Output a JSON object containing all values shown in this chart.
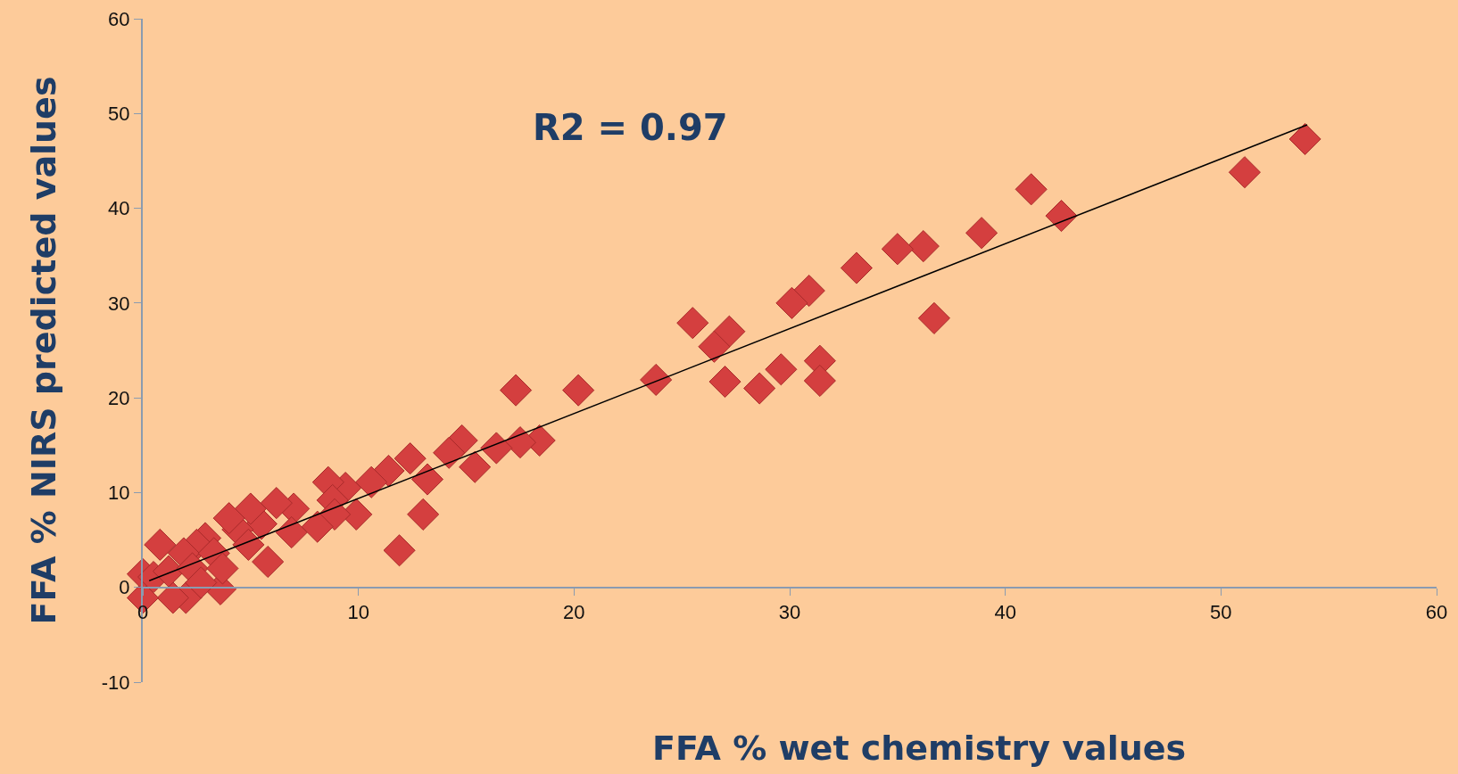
{
  "chart_data": {
    "type": "scatter",
    "xlabel": "FFA % wet chemistry values",
    "ylabel": "FFA % NIRS predicted values",
    "annotations": [
      "R2 = 0.97"
    ],
    "marker": "diamond",
    "grid": false,
    "legend": false,
    "xlim": [
      0,
      60
    ],
    "xticks": [
      0,
      10,
      20,
      30,
      40,
      50,
      60
    ],
    "ylim": [
      -10,
      60
    ],
    "yticks": [
      -10,
      0,
      10,
      20,
      30,
      40,
      50,
      60
    ],
    "series": [
      {
        "color": "#d43f3f",
        "x": [
          53.9,
          51.1,
          42.6,
          41.2,
          38.9,
          36.7,
          36.2,
          35.0,
          33.1,
          30.9,
          30.1,
          31.4,
          31.4,
          29.6,
          28.6,
          27.0,
          27.2,
          26.5,
          25.5,
          23.8,
          20.2,
          17.3,
          18.4,
          17.5,
          16.4,
          15.4,
          14.8,
          14.2,
          13.2,
          13.0,
          11.9,
          12.4,
          11.4,
          10.6,
          9.9,
          9.4,
          8.6,
          8.8,
          8.9,
          7.0,
          6.2,
          5.5,
          5.8,
          5.0,
          4.4,
          4.0,
          3.6,
          2.9,
          2.5,
          2.0,
          1.9,
          1.4,
          0.8,
          0.0,
          0.0,
          0.5,
          1.2,
          2.3,
          3.3,
          3.7,
          4.9,
          6.9,
          8.1,
          2.7
        ],
        "values": [
          47.3,
          43.8,
          39.2,
          42.0,
          37.4,
          28.4,
          36.0,
          35.7,
          33.7,
          31.3,
          30.0,
          23.9,
          21.8,
          23.0,
          21.0,
          21.7,
          27.0,
          25.4,
          27.9,
          21.9,
          20.8,
          20.8,
          15.5,
          15.3,
          14.7,
          12.7,
          15.5,
          14.2,
          11.4,
          7.7,
          3.9,
          13.6,
          12.3,
          11.1,
          7.7,
          10.5,
          11.1,
          9.2,
          7.7,
          8.3,
          8.9,
          6.7,
          2.7,
          8.3,
          6.1,
          7.3,
          -0.2,
          5.2,
          4.5,
          -1.1,
          3.6,
          -1.1,
          4.5,
          -1.1,
          1.4,
          1.1,
          1.7,
          2.0,
          3.6,
          2.0,
          4.5,
          5.8,
          6.4,
          0.5
        ]
      },
      {
        "type": "line",
        "color": "#000000",
        "marker": "none",
        "x": [
          0.3,
          54
        ],
        "values": [
          0.7,
          48.8
        ]
      }
    ]
  }
}
